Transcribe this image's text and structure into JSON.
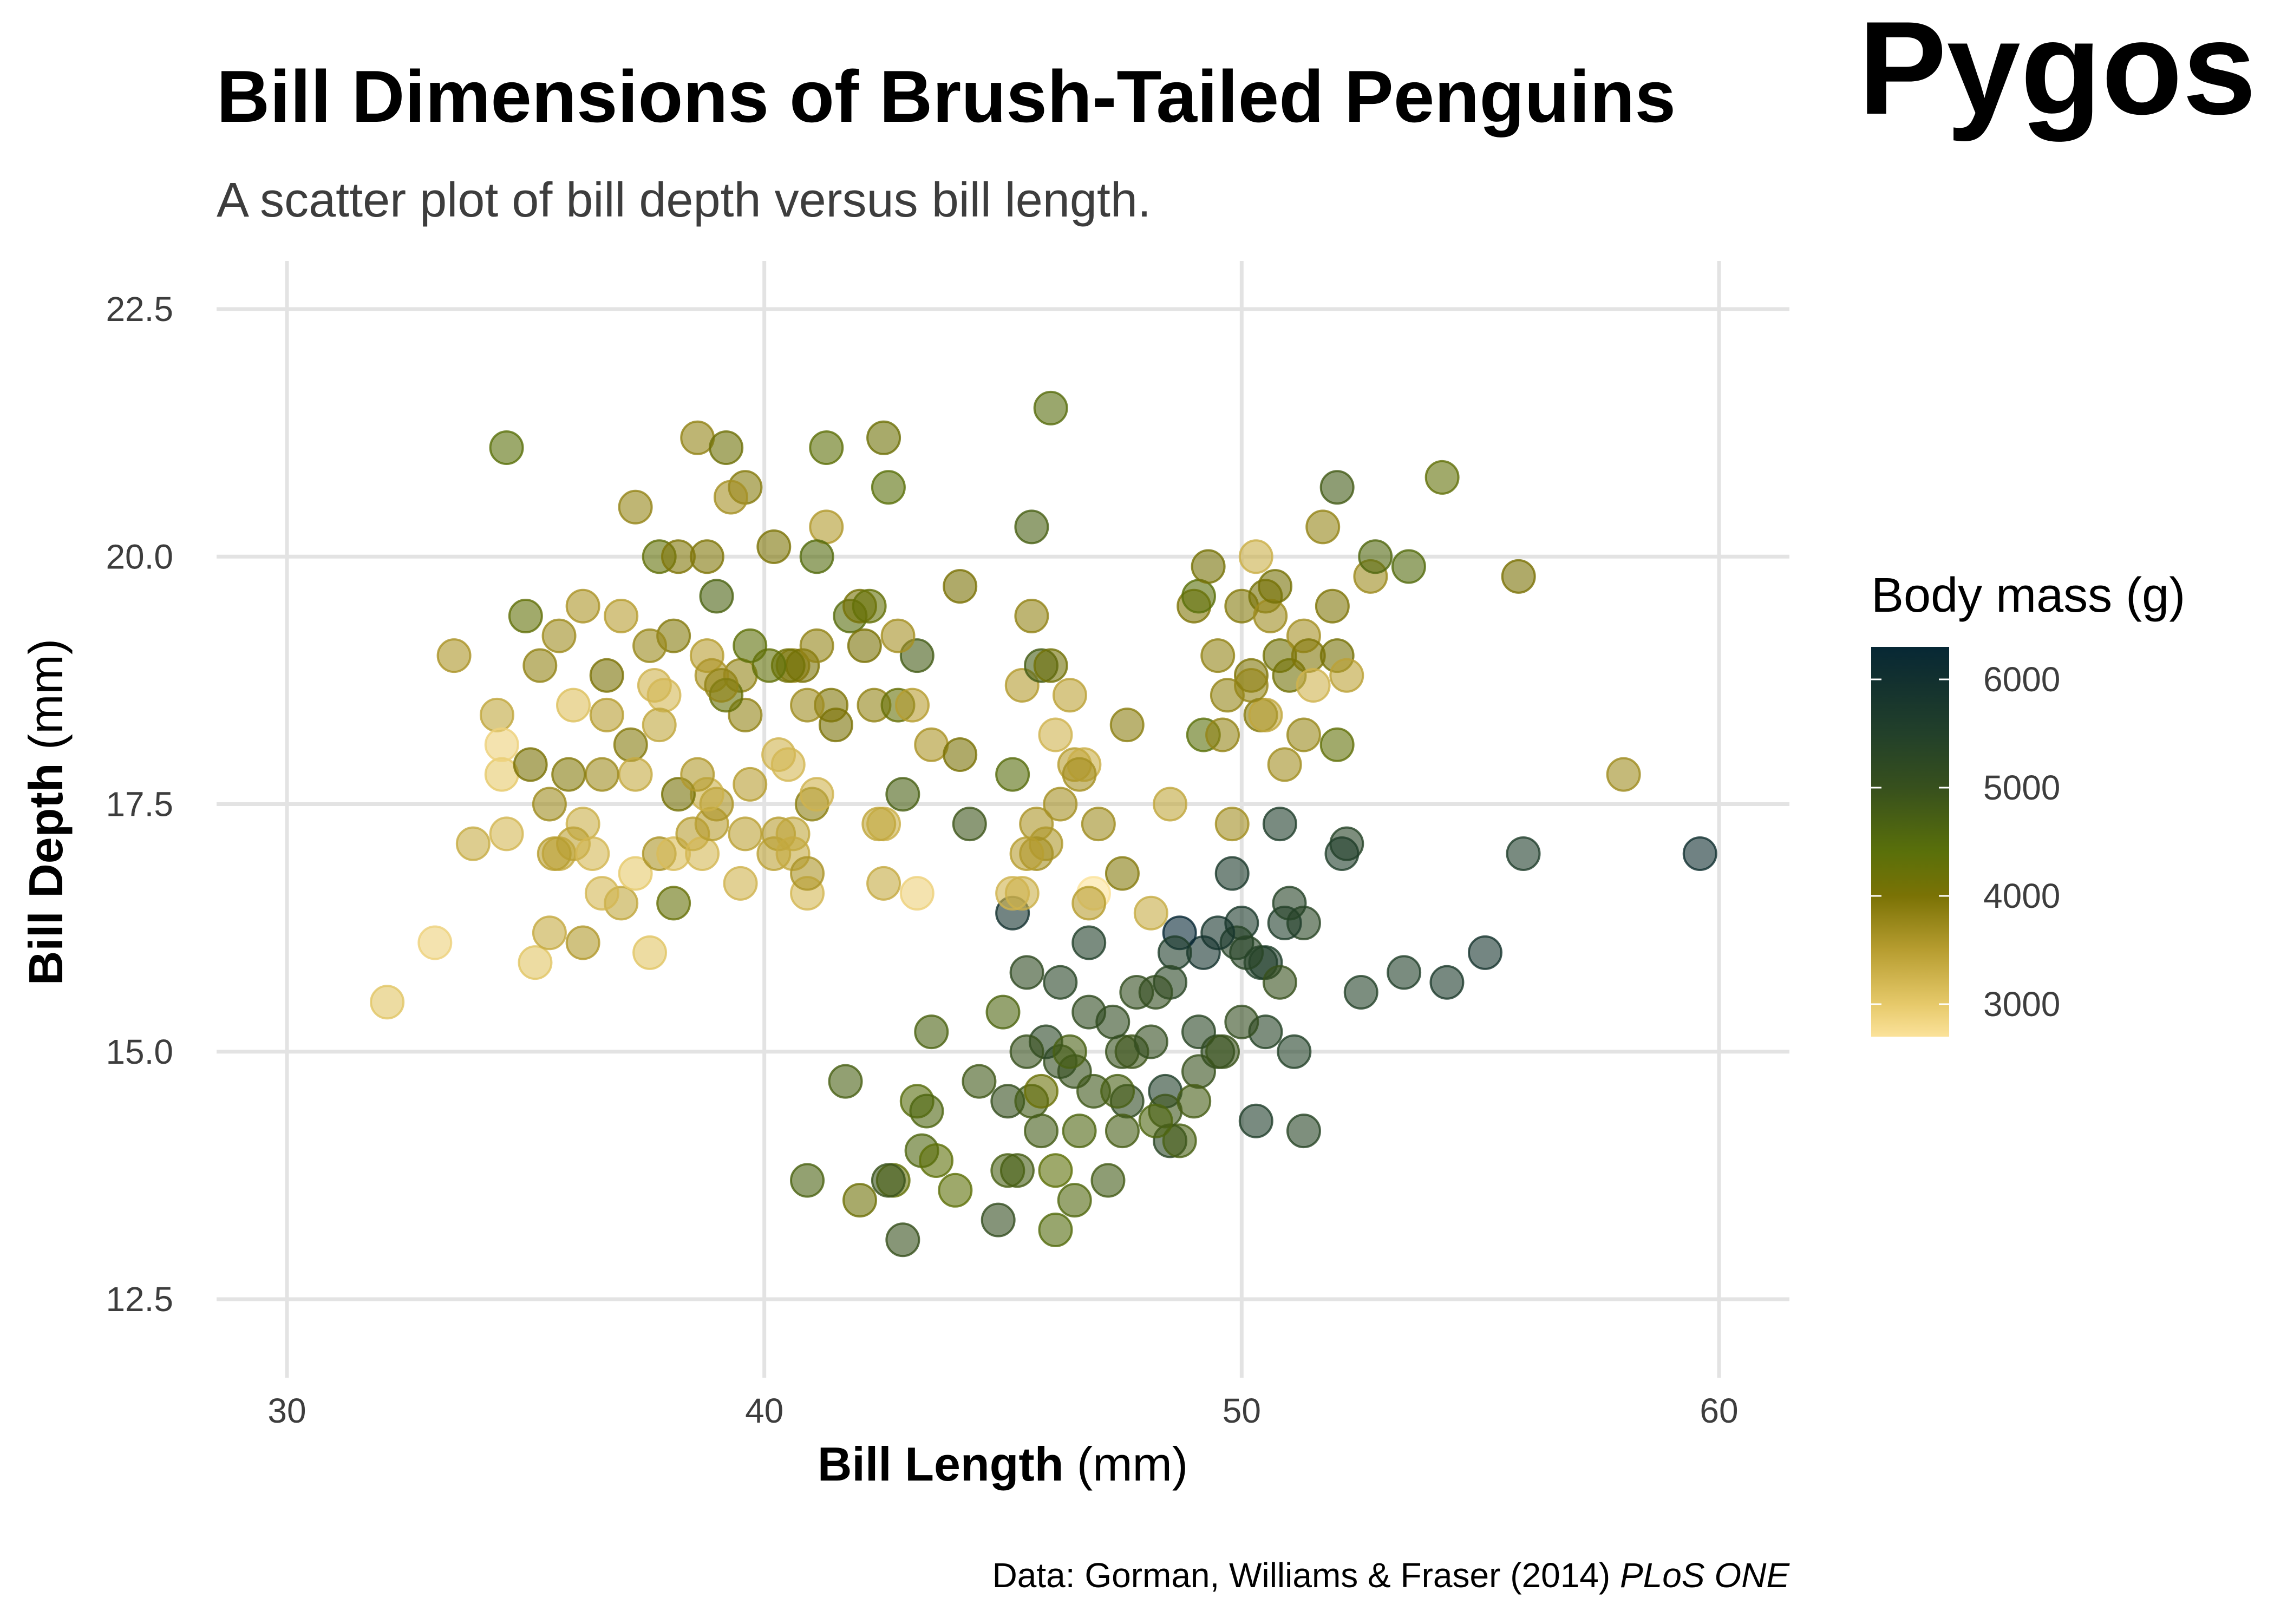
{
  "title": "Bill Dimensions of Brush-Tailed Penguins",
  "title_extra": "Pygos",
  "subtitle": "A scatter plot of bill depth versus bill length.",
  "caption_prefix": "Data: Gorman, Williams & Fraser (2014) ",
  "caption_journal": "PLoS ONE",
  "chart_data": {
    "type": "scatter",
    "xlabel_bold": "Bill Length",
    "xlabel_unit": " (mm)",
    "ylabel_bold": "Bill Depth",
    "ylabel_unit": " (mm)",
    "xlim": [
      28.5,
      61.5
    ],
    "ylim": [
      11.8,
      23.0
    ],
    "x_ticks": [
      30,
      40,
      50,
      60
    ],
    "y_ticks": [
      12.5,
      15.0,
      17.5,
      20.0,
      22.5
    ],
    "y_tick_labels": [
      "12.5",
      "15.0",
      "17.5",
      "20.0",
      "22.5"
    ],
    "grid": true,
    "legend": {
      "title": "Body mass (g)",
      "position": "right",
      "ticks": [
        3000,
        4000,
        5000,
        6000
      ],
      "range": [
        2700,
        6300
      ],
      "color_stops": [
        [
          2700,
          "#fbe29a"
        ],
        [
          3000,
          "#e6c96a"
        ],
        [
          3500,
          "#b79d30"
        ],
        [
          4000,
          "#7a7205"
        ],
        [
          4400,
          "#5a700a"
        ],
        [
          5000,
          "#37501d"
        ],
        [
          5500,
          "#22402a"
        ],
        [
          6000,
          "#12302f"
        ],
        [
          6300,
          "#072835"
        ]
      ]
    },
    "point_opacity": 0.6,
    "columns": [
      "bill_length_mm",
      "bill_depth_mm",
      "body_mass_g"
    ],
    "points": [
      [
        59.6,
        17.0,
        6050
      ],
      [
        55.9,
        17.0,
        5600
      ],
      [
        55.1,
        16.0,
        5850
      ],
      [
        54.3,
        15.7,
        5650
      ],
      [
        53.4,
        15.8,
        5500
      ],
      [
        52.5,
        15.6,
        5450
      ],
      [
        52.2,
        17.1,
        5400
      ],
      [
        52.1,
        17.0,
        5550
      ],
      [
        51.3,
        16.3,
        5300
      ],
      [
        50.9,
        16.3,
        5600
      ],
      [
        51.0,
        16.5,
        5400
      ],
      [
        50.8,
        17.3,
        5600
      ],
      [
        50.4,
        15.9,
        5500
      ],
      [
        50.5,
        15.9,
        5550
      ],
      [
        50.0,
        16.3,
        5700
      ],
      [
        49.8,
        16.8,
        5700
      ],
      [
        50.1,
        16.0,
        5350
      ],
      [
        49.9,
        16.1,
        5400
      ],
      [
        49.5,
        16.2,
        5800
      ],
      [
        49.2,
        16.0,
        5900
      ],
      [
        48.7,
        16.2,
        6300
      ],
      [
        48.6,
        16.0,
        5600
      ],
      [
        48.5,
        15.7,
        5300
      ],
      [
        48.2,
        15.6,
        5100
      ],
      [
        49.1,
        15.2,
        5300
      ],
      [
        49.5,
        15.0,
        5200
      ],
      [
        50.5,
        15.2,
        5400
      ],
      [
        50.8,
        15.7,
        5000
      ],
      [
        51.1,
        15.0,
        5450
      ],
      [
        50.3,
        14.3,
        5550
      ],
      [
        51.3,
        14.2,
        5350
      ],
      [
        50.0,
        15.3,
        5100
      ],
      [
        49.1,
        14.8,
        5000
      ],
      [
        48.4,
        14.6,
        5500
      ],
      [
        48.5,
        14.1,
        5300
      ],
      [
        47.5,
        15.0,
        5000
      ],
      [
        47.3,
        15.3,
        5150
      ],
      [
        47.6,
        14.5,
        5200
      ],
      [
        46.8,
        15.4,
        5150
      ],
      [
        46.5,
        14.8,
        5000
      ],
      [
        46.2,
        14.9,
        5100
      ],
      [
        45.9,
        15.1,
        5300
      ],
      [
        45.5,
        15.0,
        5000
      ],
      [
        45.3,
        13.8,
        4750
      ],
      [
        45.1,
        14.5,
        5050
      ],
      [
        44.9,
        13.3,
        5100
      ],
      [
        45.5,
        15.8,
        5200
      ],
      [
        45.6,
        14.5,
        4800
      ],
      [
        46.1,
        13.2,
        4500
      ],
      [
        46.5,
        13.5,
        4550
      ],
      [
        45.8,
        14.2,
        4800
      ],
      [
        46.4,
        15.0,
        4700
      ],
      [
        47.2,
        13.7,
        4800
      ],
      [
        47.7,
        15.0,
        4900
      ],
      [
        47.5,
        14.2,
        4750
      ],
      [
        46.6,
        14.2,
        4600
      ],
      [
        48.1,
        15.1,
        5100
      ],
      [
        48.7,
        14.1,
        4700
      ],
      [
        49.6,
        15.0,
        4950
      ],
      [
        48.4,
        14.4,
        4900
      ],
      [
        44.5,
        14.7,
        4850
      ],
      [
        45.0,
        15.4,
        4600
      ],
      [
        45.2,
        16.4,
        5950
      ],
      [
        46.8,
        16.1,
        5500
      ],
      [
        46.2,
        15.7,
        5350
      ],
      [
        47.8,
        15.6,
        5100
      ],
      [
        43.5,
        15.2,
        4650
      ],
      [
        42.7,
        13.7,
        4300
      ],
      [
        42.9,
        13.1,
        5000
      ],
      [
        43.2,
        14.5,
        4450
      ],
      [
        43.3,
        14.0,
        4575
      ],
      [
        43.6,
        13.9,
        4350
      ],
      [
        44.0,
        13.6,
        4350
      ],
      [
        42.0,
        13.5,
        4150
      ],
      [
        41.7,
        14.7,
        4700
      ],
      [
        40.9,
        13.7,
        4650
      ],
      [
        46.9,
        14.6,
        4875
      ],
      [
        48.2,
        14.3,
        4600
      ],
      [
        45.8,
        14.6,
        4200
      ],
      [
        47.4,
        14.6,
        4725
      ],
      [
        49.0,
        14.5,
        4750
      ],
      [
        45.1,
        13.8,
        4700
      ],
      [
        42.6,
        13.7,
        4950
      ],
      [
        43.4,
        14.4,
        4600
      ],
      [
        46.1,
        13.8,
        4350
      ],
      [
        34.6,
        21.1,
        4400
      ],
      [
        38.6,
        21.2,
        3800
      ],
      [
        39.2,
        21.1,
        4150
      ],
      [
        41.3,
        21.1,
        4350
      ],
      [
        42.5,
        21.2,
        4150
      ],
      [
        46.0,
        21.5,
        4450
      ],
      [
        42.6,
        20.7,
        4400
      ],
      [
        39.6,
        20.7,
        3900
      ],
      [
        39.3,
        20.6,
        3650
      ],
      [
        37.3,
        20.5,
        3775
      ],
      [
        41.3,
        20.3,
        3550
      ],
      [
        45.6,
        20.3,
        4700
      ],
      [
        37.8,
        20.0,
        4300
      ],
      [
        38.2,
        20.0,
        3950
      ],
      [
        38.8,
        20.0,
        3950
      ],
      [
        40.2,
        20.1,
        3975
      ],
      [
        41.1,
        20.0,
        4500
      ],
      [
        39.0,
        19.6,
        4650
      ],
      [
        33.5,
        19.0,
        3600
      ],
      [
        35.0,
        19.4,
        4300
      ],
      [
        36.2,
        19.5,
        3600
      ],
      [
        35.7,
        19.2,
        3700
      ],
      [
        35.3,
        18.9,
        3800
      ],
      [
        36.7,
        18.8,
        4000
      ],
      [
        37.0,
        19.4,
        3500
      ],
      [
        38.1,
        19.2,
        3900
      ],
      [
        37.6,
        19.1,
        3750
      ],
      [
        38.8,
        19.0,
        3500
      ],
      [
        39.5,
        18.8,
        3800
      ],
      [
        39.7,
        19.1,
        4350
      ],
      [
        40.6,
        18.9,
        3800
      ],
      [
        40.8,
        18.9,
        4000
      ],
      [
        41.1,
        19.1,
        3800
      ],
      [
        40.5,
        18.9,
        4100
      ],
      [
        41.4,
        18.5,
        3950
      ],
      [
        40.9,
        18.5,
        3700
      ],
      [
        39.6,
        18.4,
        3800
      ],
      [
        38.9,
        18.8,
        3600
      ],
      [
        39.2,
        18.6,
        4250
      ],
      [
        37.2,
        18.1,
        3900
      ],
      [
        37.7,
        18.7,
        3250
      ],
      [
        36.7,
        18.4,
        3500
      ],
      [
        36.0,
        18.5,
        3100
      ],
      [
        37.3,
        17.8,
        3350
      ],
      [
        36.6,
        17.8,
        3700
      ],
      [
        35.9,
        17.8,
        3900
      ],
      [
        35.5,
        17.5,
        3700
      ],
      [
        34.5,
        17.8,
        3000
      ],
      [
        34.4,
        18.4,
        3400
      ],
      [
        34.5,
        18.1,
        2900
      ],
      [
        35.1,
        17.9,
        4000
      ],
      [
        36.2,
        17.3,
        3300
      ],
      [
        35.7,
        17.0,
        3350
      ],
      [
        36.0,
        17.1,
        3450
      ],
      [
        36.2,
        16.1,
        3550
      ],
      [
        35.2,
        15.9,
        3050
      ],
      [
        35.5,
        16.2,
        3350
      ],
      [
        34.6,
        17.2,
        3200
      ],
      [
        33.9,
        17.1,
        3325
      ],
      [
        32.1,
        15.5,
        3050
      ],
      [
        33.1,
        16.1,
        2900
      ],
      [
        37.6,
        16.0,
        3050
      ],
      [
        37.0,
        16.5,
        3400
      ],
      [
        38.1,
        16.5,
        4250
      ],
      [
        35.6,
        17.0,
        3500
      ],
      [
        36.4,
        17.0,
        3200
      ],
      [
        36.6,
        16.6,
        3200
      ],
      [
        37.3,
        16.8,
        3000
      ],
      [
        37.8,
        17.0,
        3600
      ],
      [
        38.1,
        17.0,
        3150
      ],
      [
        38.5,
        17.2,
        3500
      ],
      [
        38.7,
        17.0,
        3200
      ],
      [
        38.9,
        17.3,
        3500
      ],
      [
        39.0,
        17.5,
        3600
      ],
      [
        39.5,
        16.7,
        3250
      ],
      [
        39.6,
        17.2,
        3450
      ],
      [
        40.2,
        17.0,
        3450
      ],
      [
        40.3,
        17.2,
        3500
      ],
      [
        40.6,
        17.2,
        3400
      ],
      [
        40.6,
        17.0,
        3350
      ],
      [
        40.9,
        16.6,
        3200
      ],
      [
        40.9,
        16.8,
        3600
      ],
      [
        41.0,
        17.5,
        3850
      ],
      [
        41.1,
        17.6,
        3250
      ],
      [
        39.7,
        17.7,
        3500
      ],
      [
        38.8,
        17.6,
        3275
      ],
      [
        38.2,
        17.6,
        4050
      ],
      [
        37.9,
        18.6,
        3200
      ],
      [
        37.8,
        18.3,
        3400
      ],
      [
        38.6,
        17.8,
        3550
      ],
      [
        39.1,
        18.7,
        3800
      ],
      [
        40.1,
        18.9,
        4300
      ],
      [
        40.3,
        18.0,
        3250
      ],
      [
        40.5,
        17.9,
        3200
      ],
      [
        41.5,
        18.3,
        4000
      ],
      [
        41.8,
        19.4,
        4450
      ],
      [
        42.0,
        19.5,
        4050
      ],
      [
        42.2,
        19.5,
        4275
      ],
      [
        42.1,
        19.1,
        4000
      ],
      [
        42.3,
        18.5,
        3800
      ],
      [
        42.8,
        18.5,
        4250
      ],
      [
        43.1,
        18.5,
        3500
      ],
      [
        43.2,
        19.0,
        4775
      ],
      [
        42.8,
        19.2,
        3650
      ],
      [
        43.5,
        18.1,
        3600
      ],
      [
        42.5,
        17.3,
        3300
      ],
      [
        42.4,
        17.3,
        3400
      ],
      [
        42.5,
        16.7,
        3350
      ],
      [
        43.2,
        16.6,
        2900
      ],
      [
        44.1,
        18.0,
        4000
      ],
      [
        44.1,
        19.7,
        4000
      ],
      [
        42.9,
        17.6,
        4700
      ],
      [
        44.3,
        17.3,
        4900
      ],
      [
        45.2,
        17.8,
        4450
      ],
      [
        45.4,
        18.7,
        3525
      ],
      [
        45.6,
        19.4,
        3800
      ],
      [
        45.8,
        18.9,
        4750
      ],
      [
        46.0,
        18.9,
        4100
      ],
      [
        45.7,
        17.3,
        3600
      ],
      [
        45.9,
        17.1,
        3575
      ],
      [
        45.7,
        17.0,
        3650
      ],
      [
        45.5,
        17.0,
        3500
      ],
      [
        45.4,
        16.6,
        3300
      ],
      [
        46.1,
        18.2,
        3250
      ],
      [
        46.4,
        18.6,
        3450
      ],
      [
        46.5,
        17.9,
        3500
      ],
      [
        46.7,
        17.9,
        3300
      ],
      [
        46.2,
        17.5,
        3650
      ],
      [
        46.9,
        16.6,
        2700
      ],
      [
        47.0,
        17.3,
        3700
      ],
      [
        46.6,
        17.8,
        3650
      ],
      [
        46.8,
        16.5,
        3500
      ],
      [
        47.5,
        16.8,
        3900
      ],
      [
        47.6,
        18.3,
        3850
      ],
      [
        48.1,
        16.4,
        3325
      ],
      [
        48.5,
        17.5,
        3400
      ],
      [
        49.0,
        19.5,
        3950
      ],
      [
        49.1,
        19.6,
        4400
      ],
      [
        49.2,
        18.2,
        4400
      ],
      [
        49.3,
        19.9,
        4050
      ],
      [
        49.5,
        19.0,
        3800
      ],
      [
        49.7,
        18.6,
        3775
      ],
      [
        49.8,
        17.3,
        3675
      ],
      [
        49.6,
        18.2,
        3775
      ],
      [
        50.0,
        19.5,
        3900
      ],
      [
        50.2,
        18.8,
        3950
      ],
      [
        50.3,
        20.0,
        3300
      ],
      [
        50.5,
        19.6,
        4050
      ],
      [
        50.6,
        19.4,
        3700
      ],
      [
        50.7,
        19.7,
        4050
      ],
      [
        50.8,
        19.0,
        4100
      ],
      [
        50.9,
        17.9,
        3675
      ],
      [
        51.0,
        18.8,
        4100
      ],
      [
        50.4,
        18.4,
        3900
      ],
      [
        51.3,
        19.2,
        3650
      ],
      [
        51.4,
        19.0,
        3950
      ],
      [
        51.5,
        18.7,
        3250
      ],
      [
        51.7,
        20.3,
        3775
      ],
      [
        51.9,
        19.5,
        3950
      ],
      [
        52.0,
        18.1,
        4300
      ],
      [
        52.0,
        19.0,
        4050
      ],
      [
        52.0,
        20.7,
        4800
      ],
      [
        52.2,
        18.8,
        3450
      ],
      [
        52.7,
        19.8,
        3725
      ],
      [
        52.8,
        20.0,
        4550
      ],
      [
        53.5,
        19.9,
        4500
      ],
      [
        54.2,
        20.8,
        4300
      ],
      [
        55.8,
        19.8,
        4000
      ],
      [
        58.0,
        17.8,
        3700
      ],
      [
        50.5,
        18.4,
        3400
      ],
      [
        51.3,
        18.2,
        3750
      ],
      [
        50.2,
        18.7,
        3775
      ],
      [
        45.2,
        16.6,
        3250
      ]
    ]
  }
}
